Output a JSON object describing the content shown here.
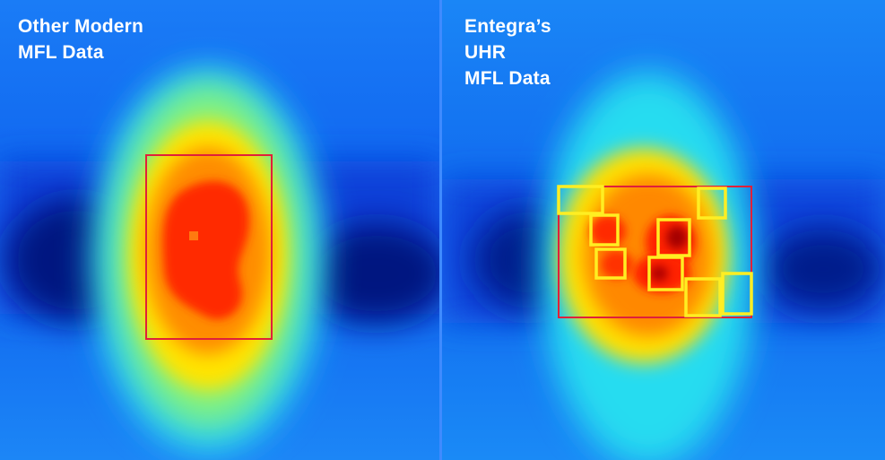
{
  "left_panel": {
    "caption_lines": [
      "Other Modern",
      "MFL Data"
    ]
  },
  "right_panel": {
    "caption_lines": [
      "Entegra’s",
      "UHR",
      "MFL Data"
    ]
  },
  "colors": {
    "background_blue": "#0a5cf0",
    "deep_blue": "#001a8c",
    "cyan": "#22d8f2",
    "green": "#7cf07a",
    "yellow": "#ffe600",
    "orange": "#ff8a00",
    "red": "#ff2a00",
    "dark_red": "#a00000",
    "box_outline_red": "#e0203a",
    "box_outline_yellow": "#ffee22"
  }
}
